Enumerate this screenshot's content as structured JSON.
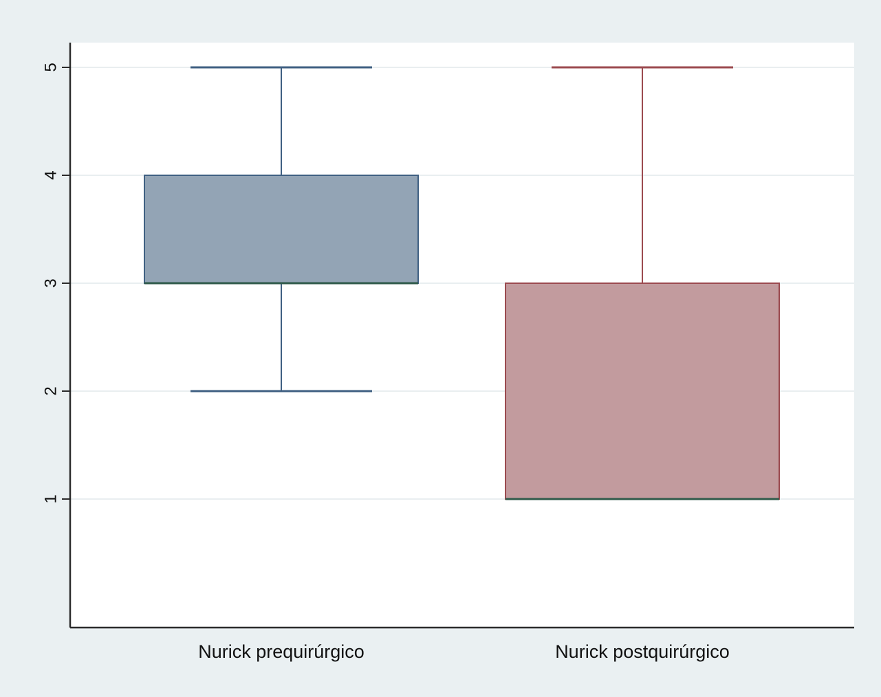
{
  "chart_data": {
    "type": "box",
    "title": "",
    "xlabel": "",
    "ylabel": "",
    "ylim": [
      0,
      5.2
    ],
    "yticks": [
      1,
      2,
      3,
      4,
      5
    ],
    "ytick_labels": [
      "1",
      "2",
      "3",
      "4",
      "5"
    ],
    "grid": true,
    "legend": "none",
    "categories": [
      "Nurick prequirúrgico",
      "Nurick postquirúrgico"
    ],
    "series": [
      {
        "category": "Nurick prequirúrgico",
        "min": 2,
        "q1": 3,
        "median": 3,
        "q3": 4,
        "max": 5,
        "fill": "#93a4b5",
        "line": "#3f5f82"
      },
      {
        "category": "Nurick postquirúrgico",
        "min": 1,
        "q1": 1,
        "median": 1,
        "q3": 3,
        "max": 5,
        "fill": "#c29b9e",
        "line": "#9b4a4f"
      }
    ],
    "colors": {
      "outer_background": "#eaf0f2",
      "plot_background": "#ffffff",
      "grid": "#e9eef0",
      "axis": "#2b2b2b",
      "median": "#2f5a4a"
    }
  }
}
